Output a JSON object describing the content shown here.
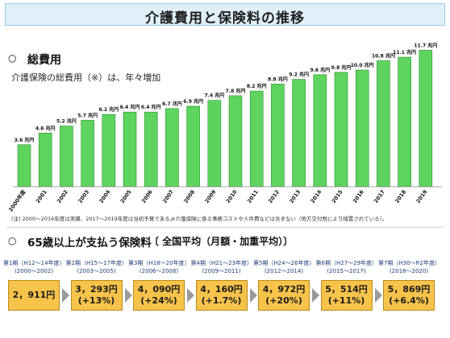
{
  "header": {
    "title": "介護費用と保険料の推移"
  },
  "section1": {
    "bullet": "○",
    "title": "総費用",
    "description": "介護保険の総費用（※）は、年々増加"
  },
  "chart_data": {
    "type": "bar",
    "title": "",
    "xlabel": "",
    "ylabel": "",
    "value_unit": "兆円",
    "ylim": [
      0,
      12
    ],
    "grid": false,
    "bar_color": "#5ed45e",
    "categories": [
      "2000年度",
      "2001",
      "2002",
      "2003",
      "2004",
      "2005",
      "2006",
      "2007",
      "2008",
      "2009",
      "2010",
      "2011",
      "2012",
      "2013",
      "2014",
      "2015",
      "2016",
      "2017",
      "2018",
      "2019"
    ],
    "values": [
      3.6,
      4.6,
      5.2,
      5.7,
      6.2,
      6.4,
      6.4,
      6.7,
      6.9,
      7.4,
      7.8,
      8.2,
      8.8,
      9.2,
      9.6,
      9.8,
      10.0,
      10.8,
      11.1,
      11.7
    ],
    "value_labels": [
      "3.6 兆円",
      "4.6 兆円",
      "5.2 兆円",
      "5.7 兆円",
      "6.2 兆円",
      "6.4 兆円",
      "6.4 兆円",
      "6.7 兆円",
      "6.9 兆円",
      "7.4 兆円",
      "7.8 兆円",
      "8.2 兆円",
      "8.8 兆円",
      "9.2 兆円",
      "9.6 兆円",
      "9.8 兆円",
      "10.0 兆円",
      "10.8 兆円",
      "11.1 兆円",
      "11.7 兆円"
    ]
  },
  "notes": {
    "left": "(注) 2000～2016年度は実績、2017～2019年度は当初予算である。",
    "right": "※介護保険に係る事務コストや人件費などは含まない（地方交付税により措置されている）。"
  },
  "section2": {
    "bullet": "○",
    "title": "65歳以上が支払う保険料",
    "subtitle": "〔 全国平均（月額・加重平均）〕",
    "periods": [
      {
        "label": "第1期（H12～14年度）",
        "years": "(2000～2002)",
        "amount": "2，911円",
        "change": ""
      },
      {
        "label": "第2期（H15～17年度）",
        "years": "(2003～2005)",
        "amount": "3，293円",
        "change": "(+13%)"
      },
      {
        "label": "第3期（H18～20年度）",
        "years": "(2006～2008)",
        "amount": "4，090円",
        "change": "(+24%)"
      },
      {
        "label": "第4期（H21～23年度）",
        "years": "(2009～2011)",
        "amount": "4，160円",
        "change": "(+1.7%)"
      },
      {
        "label": "第5期（H24～26年度）",
        "years": "(2012～2014)",
        "amount": "4，972円",
        "change": "(+20%)"
      },
      {
        "label": "第6期（H27～29年度）",
        "years": "(2015～2017)",
        "amount": "5，514円",
        "change": "(+11%)"
      },
      {
        "label": "第7期（H30～R2年度）",
        "years": "(2018～2020)",
        "amount": "5，869円",
        "change": "(+6.4%)"
      }
    ]
  }
}
